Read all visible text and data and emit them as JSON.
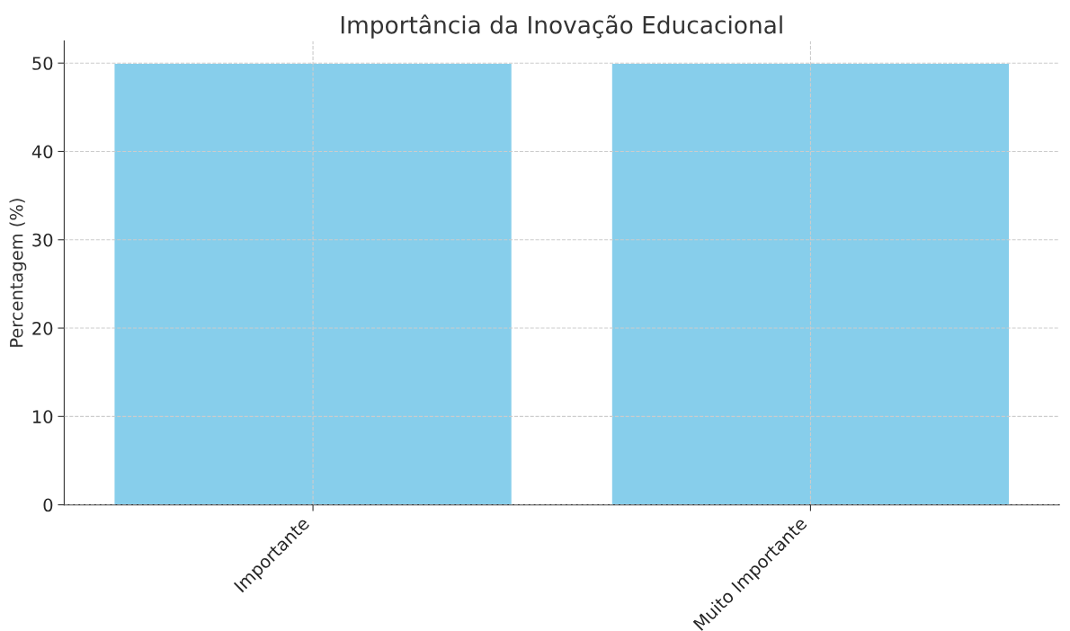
{
  "chart_data": {
    "type": "bar",
    "title": "Importância da Inovação Educacional",
    "ylabel": "Percentagem (%)",
    "categories": [
      "Importante",
      "Muito Importante"
    ],
    "values": [
      50,
      50
    ],
    "color": "#87ceeb",
    "ylim": [
      0,
      52.5
    ],
    "yticks": [
      0,
      10,
      20,
      30,
      40,
      50
    ],
    "grid": true,
    "line_style": "dashed"
  }
}
